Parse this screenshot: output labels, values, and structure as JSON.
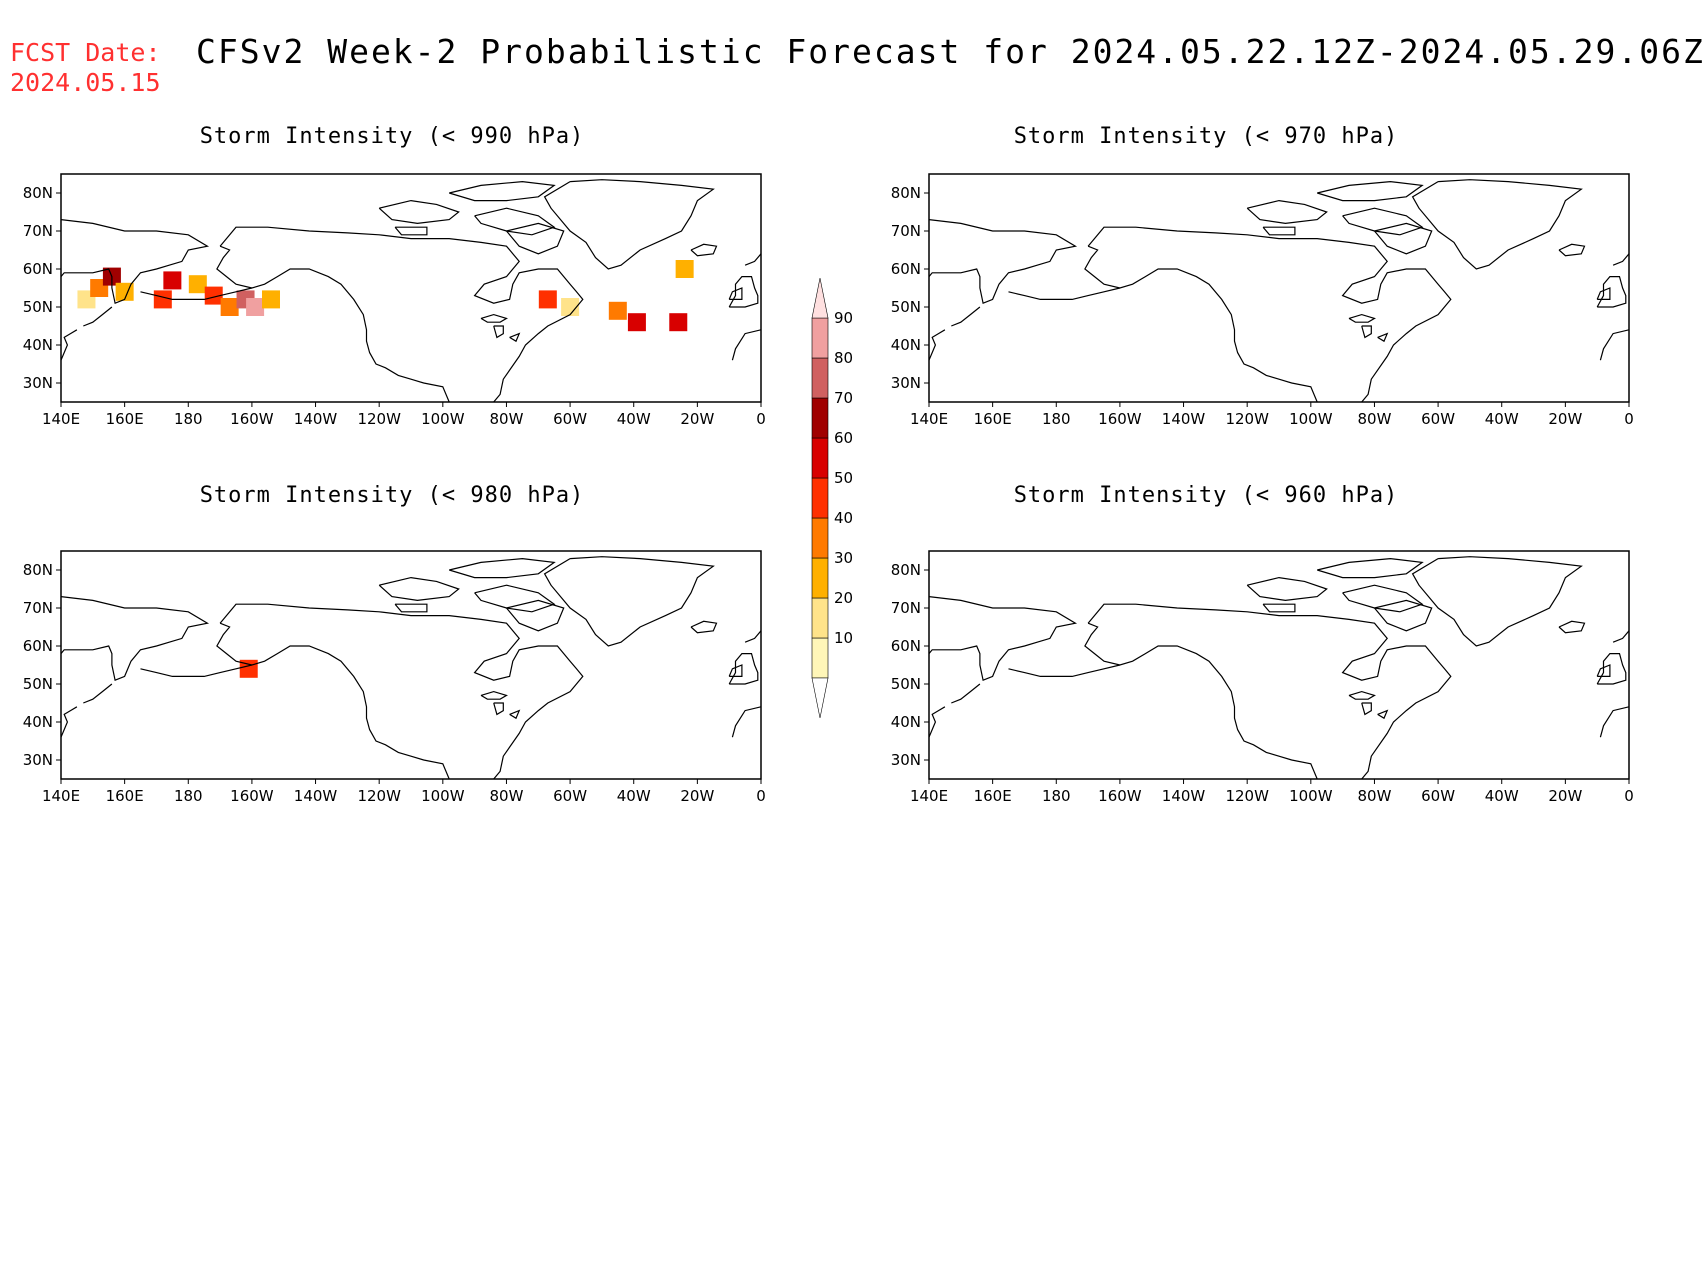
{
  "header": {
    "fcst_label": "FCST Date:",
    "fcst_date": "2024.05.15",
    "title": "CFSv2 Week-2 Probabilistic Forecast for 2024.05.22.12Z-2024.05.29.06Z"
  },
  "lon_labels": [
    "140E",
    "160E",
    "180",
    "160W",
    "140W",
    "120W",
    "100W",
    "80W",
    "60W",
    "40W",
    "20W",
    "0"
  ],
  "lat_labels": [
    "80N",
    "70N",
    "60N",
    "50N",
    "40N",
    "30N"
  ],
  "panels": [
    {
      "id": "p990",
      "title": "Storm Intensity (< 990 hPa)"
    },
    {
      "id": "p970",
      "title": "Storm Intensity (< 970 hPa)"
    },
    {
      "id": "p980",
      "title": "Storm Intensity (< 980 hPa)"
    },
    {
      "id": "p960",
      "title": "Storm Intensity (< 960 hPa)"
    }
  ],
  "colorbar": {
    "levels": [
      "10",
      "20",
      "30",
      "40",
      "50",
      "60",
      "70",
      "80",
      "90"
    ],
    "colors": [
      "#fff6b8",
      "#ffe38a",
      "#ffb000",
      "#ff7a00",
      "#ff3000",
      "#d80000",
      "#a00000",
      "#d06060",
      "#f0a0a0",
      "#ffe0e0"
    ]
  },
  "map_data": {
    "grid_extent": {
      "lon": [
        140,
        360
      ],
      "lat": [
        25,
        85
      ]
    },
    "storm_probabilities": {
      "p990": [
        {
          "lon": 148,
          "lat": 52,
          "p": 15
        },
        {
          "lon": 152,
          "lat": 55,
          "p": 35
        },
        {
          "lon": 156,
          "lat": 58,
          "p": 65
        },
        {
          "lon": 160,
          "lat": 54,
          "p": 25
        },
        {
          "lon": 172,
          "lat": 52,
          "p": 40
        },
        {
          "lon": 175,
          "lat": 57,
          "p": 55
        },
        {
          "lon": 183,
          "lat": 56,
          "p": 20
        },
        {
          "lon": 188,
          "lat": 53,
          "p": 45
        },
        {
          "lon": 193,
          "lat": 50,
          "p": 30
        },
        {
          "lon": 198,
          "lat": 52,
          "p": 75
        },
        {
          "lon": 201,
          "lat": 50,
          "p": 85
        },
        {
          "lon": 206,
          "lat": 52,
          "p": 25
        },
        {
          "lon": 293,
          "lat": 52,
          "p": 45
        },
        {
          "lon": 300,
          "lat": 50,
          "p": 15
        },
        {
          "lon": 315,
          "lat": 49,
          "p": 30
        },
        {
          "lon": 321,
          "lat": 46,
          "p": 55
        },
        {
          "lon": 334,
          "lat": 46,
          "p": 50
        },
        {
          "lon": 336,
          "lat": 60,
          "p": 25
        }
      ],
      "p970": [],
      "p980": [
        {
          "lon": 199,
          "lat": 54,
          "p": 45
        }
      ],
      "p960": []
    }
  }
}
